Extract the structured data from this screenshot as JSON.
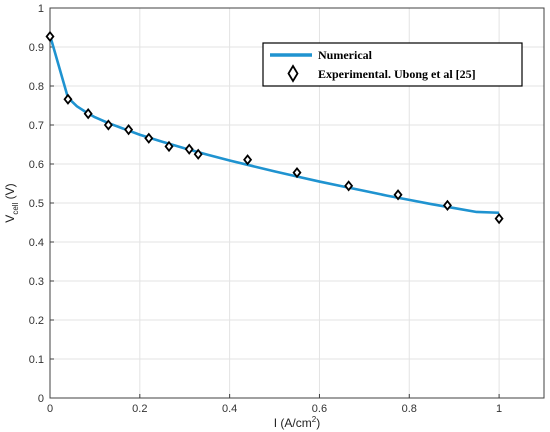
{
  "chart_data": {
    "type": "line",
    "title": "",
    "xlabel": {
      "prefix": "I (A/cm",
      "sup": "2",
      "suffix": ")"
    },
    "ylabel": {
      "prefix": "V",
      "sub": "cell",
      "suffix": " (V)"
    },
    "xlim": [
      0,
      1.1
    ],
    "ylim": [
      0,
      1
    ],
    "x_ticks": [
      "0",
      "0.2",
      "0.4",
      "0.6",
      "0.8",
      "1"
    ],
    "y_ticks": [
      "0",
      "0.1",
      "0.2",
      "0.3",
      "0.4",
      "0.5",
      "0.6",
      "0.7",
      "0.8",
      "0.9",
      "1"
    ],
    "grid": true,
    "legend": {
      "position": "top-right"
    },
    "series": [
      {
        "name": "Numerical",
        "kind": "line",
        "color": "#1f93d0",
        "x": [
          0,
          0.01,
          0.02,
          0.03,
          0.04,
          0.06,
          0.08,
          0.1,
          0.13,
          0.16,
          0.2,
          0.25,
          0.3,
          0.35,
          0.4,
          0.45,
          0.5,
          0.55,
          0.6,
          0.65,
          0.7,
          0.75,
          0.8,
          0.85,
          0.9,
          0.95,
          1.0
        ],
        "y": [
          0.93,
          0.89,
          0.85,
          0.81,
          0.77,
          0.748,
          0.733,
          0.72,
          0.705,
          0.692,
          0.675,
          0.657,
          0.64,
          0.624,
          0.609,
          0.595,
          0.581,
          0.568,
          0.555,
          0.543,
          0.531,
          0.519,
          0.508,
          0.497,
          0.487,
          0.477,
          0.475
        ]
      },
      {
        "name": "Experimental. Ubong et al [25]",
        "kind": "marker",
        "marker": "diamond",
        "color": "#000000",
        "x": [
          0,
          0.04,
          0.085,
          0.13,
          0.175,
          0.22,
          0.265,
          0.31,
          0.33,
          0.44,
          0.55,
          0.665,
          0.775,
          0.885,
          1.0
        ],
        "y": [
          0.927,
          0.766,
          0.729,
          0.7,
          0.688,
          0.666,
          0.645,
          0.638,
          0.625,
          0.611,
          0.578,
          0.544,
          0.521,
          0.494,
          0.46
        ]
      }
    ]
  }
}
